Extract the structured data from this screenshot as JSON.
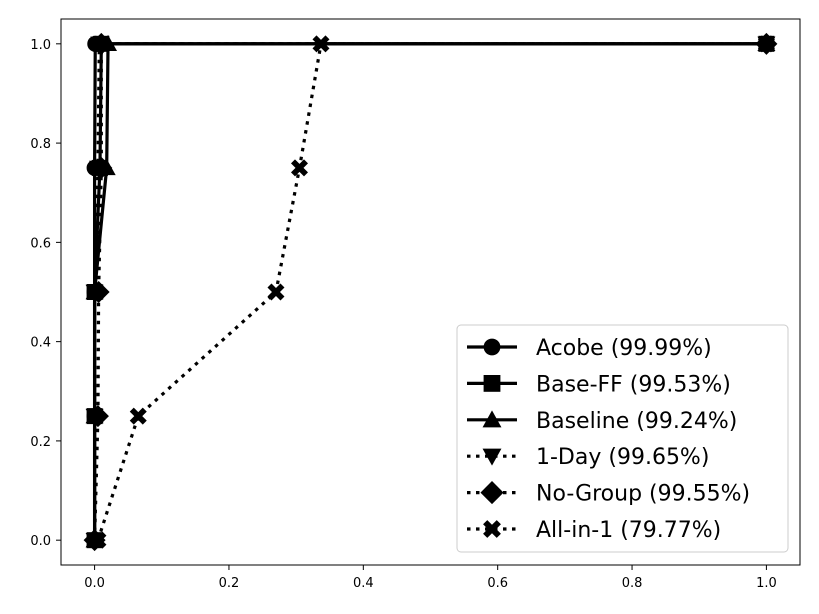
{
  "chart_data": {
    "type": "line",
    "title": "",
    "xlabel": "",
    "ylabel": "",
    "xlim": [
      -0.05,
      1.05
    ],
    "ylim": [
      -0.05,
      1.05
    ],
    "xticks": [
      0.0,
      0.2,
      0.4,
      0.6,
      0.8,
      1.0
    ],
    "yticks": [
      0.0,
      0.2,
      0.4,
      0.6,
      0.8,
      1.0
    ],
    "xtick_labels": [
      "0.0",
      "0.2",
      "0.4",
      "0.6",
      "0.8",
      "1.0"
    ],
    "ytick_labels": [
      "0.0",
      "0.2",
      "0.4",
      "0.6",
      "0.8",
      "1.0"
    ],
    "grid": false,
    "legend_position": "lower-right",
    "series": [
      {
        "name": "Acobe (99.99%)",
        "line": "solid",
        "marker": "circle",
        "x": [
          0.0,
          0.0,
          0.0,
          0.0,
          0.001,
          0.002,
          1.0
        ],
        "y": [
          0.0,
          0.25,
          0.5,
          0.75,
          1.0,
          1.0,
          1.0
        ]
      },
      {
        "name": "Base-FF (99.53%)",
        "line": "solid",
        "marker": "square",
        "x": [
          0.0,
          0.0,
          0.0,
          0.008,
          0.01,
          1.0
        ],
        "y": [
          0.0,
          0.25,
          0.5,
          0.75,
          1.0,
          1.0
        ]
      },
      {
        "name": "Baseline (99.24%)",
        "line": "solid",
        "marker": "triangle-up",
        "x": [
          0.0,
          0.0,
          0.0,
          0.018,
          0.02,
          1.0
        ],
        "y": [
          0.0,
          0.25,
          0.5,
          0.75,
          1.0,
          1.0
        ]
      },
      {
        "name": "1-Day (99.65%)",
        "line": "dotted",
        "marker": "triangle-down",
        "x": [
          0.0,
          0.0,
          0.0,
          0.005,
          0.007,
          1.0
        ],
        "y": [
          0.0,
          0.25,
          0.5,
          0.75,
          1.0,
          1.0
        ]
      },
      {
        "name": "No-Group (99.55%)",
        "line": "dotted",
        "marker": "diamond",
        "x": [
          0.0,
          0.005,
          0.006,
          0.01,
          0.01,
          1.0
        ],
        "y": [
          0.0,
          0.25,
          0.5,
          0.75,
          1.0,
          1.0
        ]
      },
      {
        "name": "All-in-1 (79.77%)",
        "line": "dotted",
        "marker": "x-filled",
        "x": [
          0.005,
          0.065,
          0.27,
          0.305,
          0.337,
          1.0
        ],
        "y": [
          0.0,
          0.25,
          0.5,
          0.75,
          1.0,
          1.0
        ]
      }
    ]
  }
}
